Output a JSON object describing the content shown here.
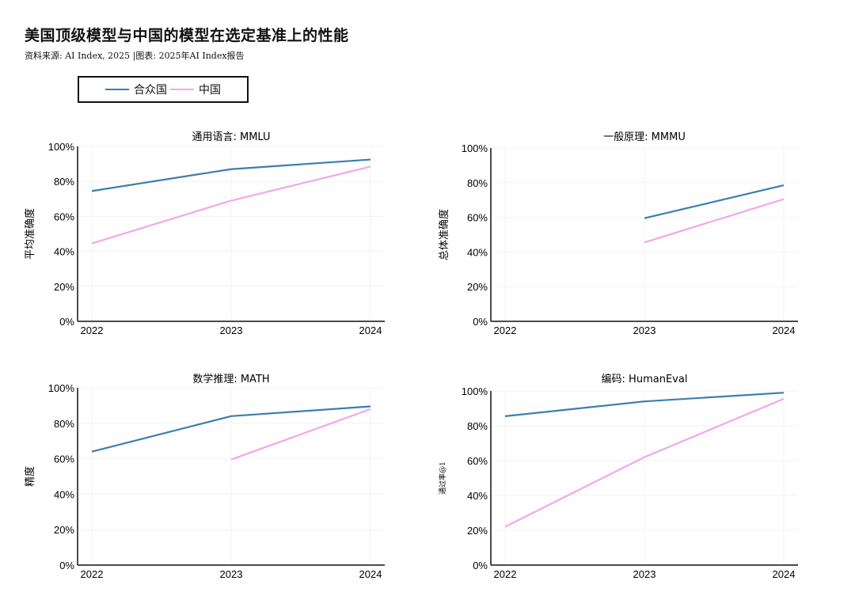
{
  "header": {
    "title": "美国顶级模型与中国的模型在选定基准上的性能",
    "subtitle": "资料来源: AI Index, 2025 |图表: 2025年AI Index报告"
  },
  "legend": {
    "items": [
      {
        "label": "合众国",
        "color": "#3a7fae"
      },
      {
        "label": "中国",
        "color": "#f0a6f0"
      }
    ]
  },
  "chart_data": [
    {
      "type": "line",
      "title": "通用语言: MMLU",
      "ylabel": "平均准确度",
      "x": [
        "2022",
        "2023",
        "2024"
      ],
      "yticks": [
        "0%",
        "20%",
        "40%",
        "60%",
        "80%",
        "100%"
      ],
      "ylim": [
        0,
        100
      ],
      "series": [
        {
          "name": "合众国",
          "color": "#3a7fae",
          "values": [
            74.5,
            87,
            92.5
          ]
        },
        {
          "name": "中国",
          "color": "#f0a6f0",
          "values": [
            44.5,
            69,
            88.5
          ]
        }
      ]
    },
    {
      "type": "line",
      "title": "一般原理: MMMU",
      "ylabel": "总体准确度",
      "x": [
        "2022",
        "2023",
        "2024"
      ],
      "yticks": [
        "0%",
        "20%",
        "40%",
        "60%",
        "80%",
        "100%"
      ],
      "ylim": [
        0,
        100
      ],
      "series": [
        {
          "name": "合众国",
          "color": "#3a7fae",
          "values": [
            null,
            59.5,
            78.5
          ]
        },
        {
          "name": "中国",
          "color": "#f0a6f0",
          "values": [
            null,
            45.5,
            70.5
          ]
        }
      ]
    },
    {
      "type": "line",
      "title": "数学推理: MATH",
      "ylabel": "精度",
      "x": [
        "2022",
        "2023",
        "2024"
      ],
      "yticks": [
        "0%",
        "20%",
        "40%",
        "60%",
        "80%",
        "100%"
      ],
      "ylim": [
        0,
        100
      ],
      "series": [
        {
          "name": "合众国",
          "color": "#3a7fae",
          "values": [
            64,
            84,
            89.5
          ]
        },
        {
          "name": "中国",
          "color": "#f0a6f0",
          "values": [
            null,
            59.5,
            88
          ]
        }
      ]
    },
    {
      "type": "line",
      "title": "编码: HumanEval",
      "ylabel": "通过率@1",
      "x": [
        "2022",
        "2023",
        "2024"
      ],
      "yticks": [
        "0%",
        "20%",
        "40%",
        "60%",
        "80%",
        "100%"
      ],
      "ylim": [
        0,
        100
      ],
      "series": [
        {
          "name": "合众国",
          "color": "#3a7fae",
          "values": [
            85.5,
            94,
            99
          ]
        },
        {
          "name": "中国",
          "color": "#f0a6f0",
          "values": [
            22,
            62,
            95.5
          ]
        }
      ]
    }
  ]
}
